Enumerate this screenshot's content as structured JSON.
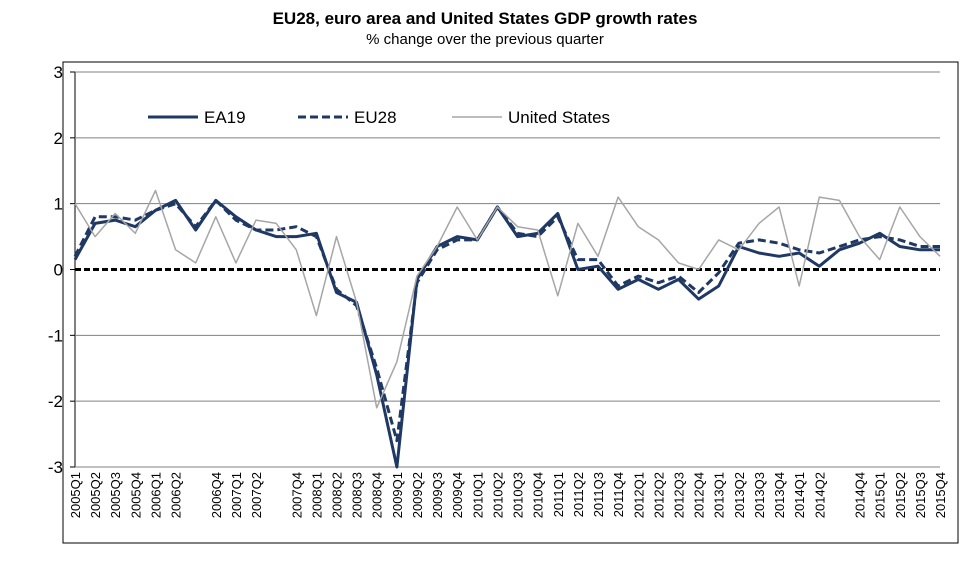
{
  "chart_data": {
    "type": "line",
    "title": "EU28, euro area and United States GDP growth rates",
    "subtitle": "% change over the previous quarter",
    "categories": [
      "2005Q1",
      "2005Q2",
      "2005Q3",
      "2005Q4",
      "2006Q1",
      "2006Q2",
      null,
      "2006Q4",
      "2007Q1",
      "2007Q2",
      null,
      "2007Q4",
      "2008Q1",
      "2008Q2",
      "2008Q3",
      "2008Q4",
      "2009Q1",
      "2009Q2",
      "2009Q3",
      "2009Q4",
      "2010Q1",
      "2010Q2",
      "2010Q3",
      "2010Q4",
      "2011Q1",
      "2011Q2",
      "2011Q3",
      "2011Q4",
      "2012Q1",
      "2012Q2",
      "2012Q3",
      "2012Q4",
      "2013Q1",
      "2013Q2",
      "2013Q3",
      "2013Q4",
      "2014Q1",
      "2014Q2",
      null,
      "2014Q4",
      "2015Q1",
      "2015Q2",
      "2015Q3",
      "2015Q4"
    ],
    "series": [
      {
        "name": "EA19",
        "color": "#1f3864",
        "style": "solid",
        "width": 3,
        "values": [
          0.15,
          0.7,
          0.75,
          0.65,
          0.9,
          1.05,
          0.6,
          1.05,
          0.8,
          0.6,
          0.5,
          0.5,
          0.55,
          -0.35,
          -0.5,
          -1.6,
          -3.0,
          -0.15,
          0.35,
          0.5,
          0.45,
          0.95,
          0.5,
          0.55,
          0.85,
          0.0,
          0.05,
          -0.3,
          -0.15,
          -0.3,
          -0.15,
          -0.45,
          -0.25,
          0.35,
          0.25,
          0.2,
          0.25,
          0.05,
          0.3,
          0.4,
          0.55,
          0.35,
          0.3,
          0.3
        ]
      },
      {
        "name": "EU28",
        "color": "#1f3864",
        "style": "dashed",
        "width": 3,
        "values": [
          0.2,
          0.8,
          0.8,
          0.75,
          0.9,
          1.0,
          0.65,
          1.05,
          0.75,
          0.6,
          0.6,
          0.65,
          0.5,
          -0.3,
          -0.55,
          -1.5,
          -2.6,
          -0.2,
          0.3,
          0.45,
          0.45,
          0.95,
          0.55,
          0.5,
          0.8,
          0.15,
          0.15,
          -0.25,
          -0.1,
          -0.2,
          -0.1,
          -0.35,
          -0.05,
          0.4,
          0.45,
          0.4,
          0.3,
          0.25,
          0.35,
          0.45,
          0.5,
          0.45,
          0.35,
          0.35
        ]
      },
      {
        "name": "United States",
        "color": "#a6a6a6",
        "style": "solid",
        "width": 1.5,
        "values": [
          1.0,
          0.5,
          0.85,
          0.55,
          1.2,
          0.3,
          0.1,
          0.8,
          0.1,
          0.75,
          0.7,
          0.3,
          -0.7,
          0.5,
          -0.5,
          -2.1,
          -1.4,
          -0.1,
          0.35,
          0.95,
          0.45,
          0.95,
          0.65,
          0.6,
          -0.4,
          0.7,
          0.2,
          1.1,
          0.65,
          0.45,
          0.1,
          0.0,
          0.45,
          0.3,
          0.7,
          0.95,
          -0.25,
          1.1,
          1.05,
          0.5,
          0.15,
          0.95,
          0.5,
          0.2
        ]
      }
    ],
    "ylim": [
      -3,
      3
    ],
    "yticks": [
      -3,
      -2,
      -1,
      0,
      1,
      2,
      3
    ],
    "grid": true,
    "legend": "top-left"
  }
}
